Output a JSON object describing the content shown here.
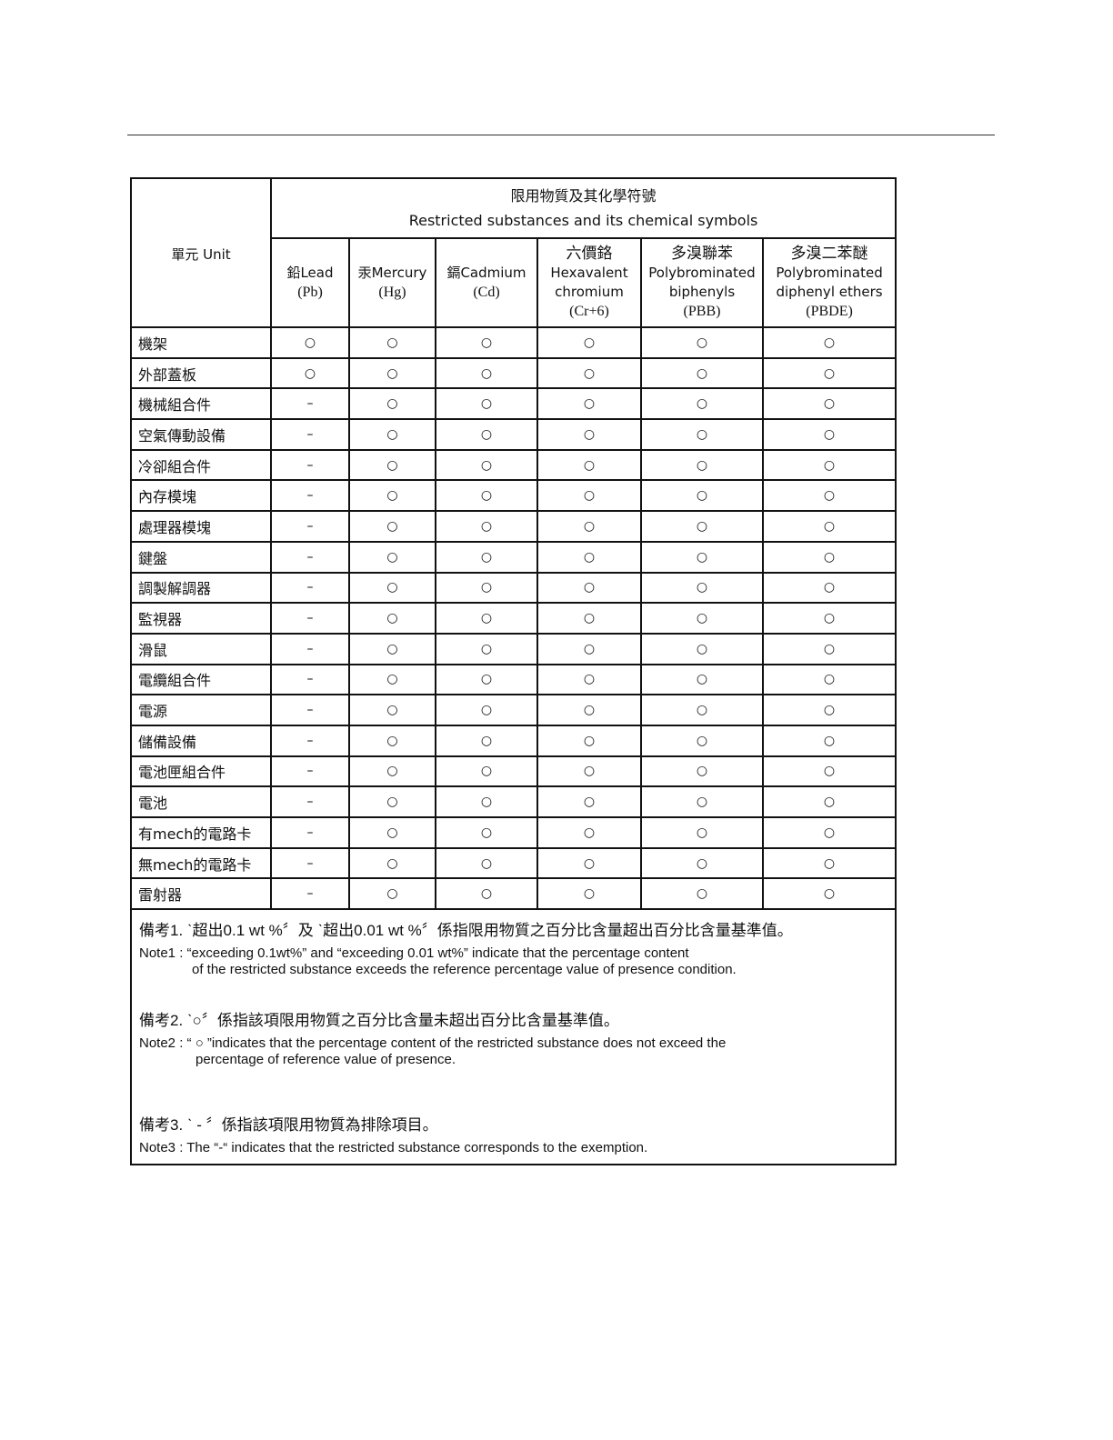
{
  "header": {
    "unit": "單元 Unit",
    "group_title_zh": "限用物質及其化學符號",
    "group_title_en": "Restricted substances and its chemical symbols",
    "columns": [
      {
        "name": "鉛Lead",
        "symbol": "(Pb)"
      },
      {
        "name": "汞Mercury",
        "symbol": "(Hg)"
      },
      {
        "name": "鎘Cadmium",
        "symbol": "(Cd)"
      },
      {
        "name_zh": "六價鉻",
        "name": "Hexavalent chromium",
        "symbol": "(Cr+6)"
      },
      {
        "name_zh": "多溴聯苯",
        "name": "Polybrominated biphenyls",
        "symbol": "(PBB)"
      },
      {
        "name_zh": "多溴二苯醚",
        "name": "Polybrominated diphenyl ethers",
        "symbol": "(PBDE)"
      }
    ]
  },
  "rows": [
    {
      "unit": "機架",
      "values": [
        "○",
        "○",
        "○",
        "○",
        "○",
        "○"
      ]
    },
    {
      "unit": "外部蓋板",
      "values": [
        "○",
        "○",
        "○",
        "○",
        "○",
        "○"
      ]
    },
    {
      "unit": "機械組合件",
      "values": [
        "–",
        "○",
        "○",
        "○",
        "○",
        "○"
      ]
    },
    {
      "unit": "空氣傳動設備",
      "values": [
        "–",
        "○",
        "○",
        "○",
        "○",
        "○"
      ]
    },
    {
      "unit": "冷卻組合件",
      "values": [
        "–",
        "○",
        "○",
        "○",
        "○",
        "○"
      ]
    },
    {
      "unit": "內存模塊",
      "values": [
        "–",
        "○",
        "○",
        "○",
        "○",
        "○"
      ]
    },
    {
      "unit": "處理器模塊",
      "values": [
        "–",
        "○",
        "○",
        "○",
        "○",
        "○"
      ]
    },
    {
      "unit": "鍵盤",
      "values": [
        "–",
        "○",
        "○",
        "○",
        "○",
        "○"
      ]
    },
    {
      "unit": "調製解調器",
      "values": [
        "–",
        "○",
        "○",
        "○",
        "○",
        "○"
      ]
    },
    {
      "unit": "監視器",
      "values": [
        "–",
        "○",
        "○",
        "○",
        "○",
        "○"
      ]
    },
    {
      "unit": "滑鼠",
      "values": [
        "–",
        "○",
        "○",
        "○",
        "○",
        "○"
      ]
    },
    {
      "unit": "電纜組合件",
      "values": [
        "–",
        "○",
        "○",
        "○",
        "○",
        "○"
      ]
    },
    {
      "unit": "電源",
      "values": [
        "–",
        "○",
        "○",
        "○",
        "○",
        "○"
      ]
    },
    {
      "unit": "儲備設備",
      "values": [
        "–",
        "○",
        "○",
        "○",
        "○",
        "○"
      ]
    },
    {
      "unit": "電池匣組合件",
      "values": [
        "–",
        "○",
        "○",
        "○",
        "○",
        "○"
      ]
    },
    {
      "unit": "電池",
      "values": [
        "–",
        "○",
        "○",
        "○",
        "○",
        "○"
      ]
    },
    {
      "unit": "有mech的電路卡",
      "values": [
        "–",
        "○",
        "○",
        "○",
        "○",
        "○"
      ]
    },
    {
      "unit": "無mech的電路卡",
      "values": [
        "–",
        "○",
        "○",
        "○",
        "○",
        "○"
      ]
    },
    {
      "unit": "雷射器",
      "values": [
        "–",
        "○",
        "○",
        "○",
        "○",
        "○"
      ]
    }
  ],
  "notes": {
    "note1_zh": "備考1. ˋ超出0.1 wt %〞及 ˋ超出0.01 wt %〞係指限用物質之百分比含量超出百分比含量基準值。",
    "note1_en_1": "Note1 : “exceeding 0.1wt%” and “exceeding 0.01 wt%” indicate that the percentage content",
    "note1_en_2": "of the restricted substance exceeds the reference percentage value of presence condition.",
    "note2_zh": "備考2. ˋ○〞係指該項限用物質之百分比含量未超出百分比含量基準值。",
    "note2_en_1": "Note2 : “ ○ ”indicates that the percentage content of the restricted substance does not exceed the",
    "note2_en_2": "percentage of reference value of presence.",
    "note3_zh": "備考3. ˋ - 〞係指該項限用物質為排除項目。",
    "note3_en": "Note3 : The “-“ indicates that the restricted substance corresponds to the exemption."
  }
}
